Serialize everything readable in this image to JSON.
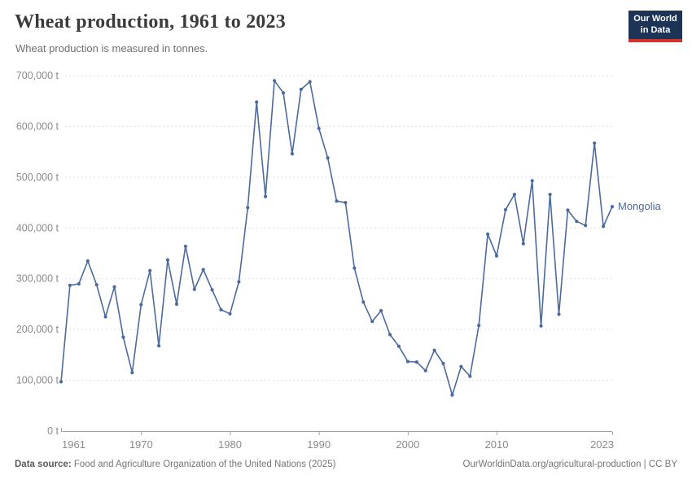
{
  "header": {
    "title": "Wheat production, 1961 to 2023",
    "subtitle": "Wheat production is measured in tonnes."
  },
  "logo": {
    "line1": "Our World",
    "line2": "in Data",
    "bg_color": "#1d3456",
    "stripe_color": "#d0342c"
  },
  "chart_data": {
    "type": "line",
    "title": "Wheat production, 1961 to 2023",
    "unit": "t",
    "entity_label": "Mongolia",
    "grid": "horizontal-dashed",
    "legend_position": "end-of-line-label",
    "ylim": [
      0,
      700000
    ],
    "x": [
      1961,
      1962,
      1963,
      1964,
      1965,
      1966,
      1967,
      1968,
      1969,
      1970,
      1971,
      1972,
      1973,
      1974,
      1975,
      1976,
      1977,
      1978,
      1979,
      1980,
      1981,
      1982,
      1983,
      1984,
      1985,
      1986,
      1987,
      1988,
      1989,
      1990,
      1991,
      1992,
      1993,
      1994,
      1995,
      1996,
      1997,
      1998,
      1999,
      2000,
      2001,
      2002,
      2003,
      2004,
      2005,
      2006,
      2007,
      2008,
      2009,
      2010,
      2011,
      2012,
      2013,
      2014,
      2015,
      2016,
      2017,
      2018,
      2019,
      2020,
      2021,
      2022,
      2023
    ],
    "series": [
      {
        "name": "Mongolia",
        "color": "#4c6a9c",
        "values": [
          97000,
          287000,
          290000,
          335000,
          288000,
          225000,
          284000,
          185000,
          115000,
          249000,
          316000,
          168000,
          337000,
          250000,
          364000,
          279000,
          318000,
          278000,
          239000,
          231000,
          294000,
          440000,
          648000,
          462000,
          690000,
          666000,
          546000,
          673000,
          688000,
          596000,
          538000,
          453000,
          450000,
          321000,
          254000,
          216000,
          237000,
          190000,
          167000,
          137000,
          136000,
          119000,
          159000,
          133000,
          71000,
          127000,
          108000,
          208000,
          388000,
          345000,
          436000,
          466000,
          369000,
          493000,
          207000,
          466000,
          230000,
          435000,
          413000,
          405000,
          567000,
          403000,
          442000
        ]
      }
    ],
    "yticks": [
      {
        "value": 0,
        "label": "0 t"
      },
      {
        "value": 100000,
        "label": "100,000 t"
      },
      {
        "value": 200000,
        "label": "200,000 t"
      },
      {
        "value": 300000,
        "label": "300,000 t"
      },
      {
        "value": 400000,
        "label": "400,000 t"
      },
      {
        "value": 500000,
        "label": "500,000 t"
      },
      {
        "value": 600000,
        "label": "600,000 t"
      },
      {
        "value": 700000,
        "label": "700,000 t"
      }
    ],
    "xticks": [
      1961,
      1970,
      1980,
      1990,
      2000,
      2010,
      2023
    ]
  },
  "footer": {
    "source_label": "Data source:",
    "source_text": "Food and Agriculture Organization of the United Nations (2025)",
    "link_text": "OurWorldinData.org/agricultural-production | CC BY"
  }
}
